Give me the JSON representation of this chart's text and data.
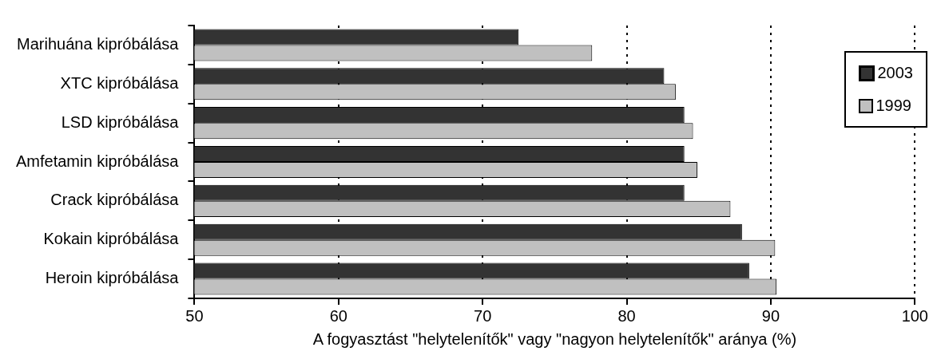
{
  "chart_data": {
    "type": "bar",
    "orientation": "horizontal",
    "xlabel": "A fogyasztást \"helytelenítők\" vagy \"nagyon helytelenítők\" aránya (%)",
    "categories": [
      "Marihuána kipróbálása",
      "XTC kipróbálása",
      "LSD kipróbálása",
      "Amfetamin kipróbálása",
      "Crack kipróbálása",
      "Kokain kipróbálása",
      "Heroin kipróbálása"
    ],
    "series": [
      {
        "name": "2003",
        "color": "#333333",
        "values": [
          72.5,
          82.6,
          84.0,
          84.0,
          84.0,
          88.0,
          88.5
        ]
      },
      {
        "name": "1999",
        "color": "#c0c0c0",
        "values": [
          77.6,
          83.4,
          84.6,
          84.9,
          87.2,
          90.3,
          90.4
        ]
      }
    ],
    "xlim": [
      50,
      100
    ],
    "xticks": [
      50,
      60,
      70,
      80,
      90,
      100
    ],
    "grid": "x",
    "line_style": "dotted",
    "legend": "top right"
  }
}
